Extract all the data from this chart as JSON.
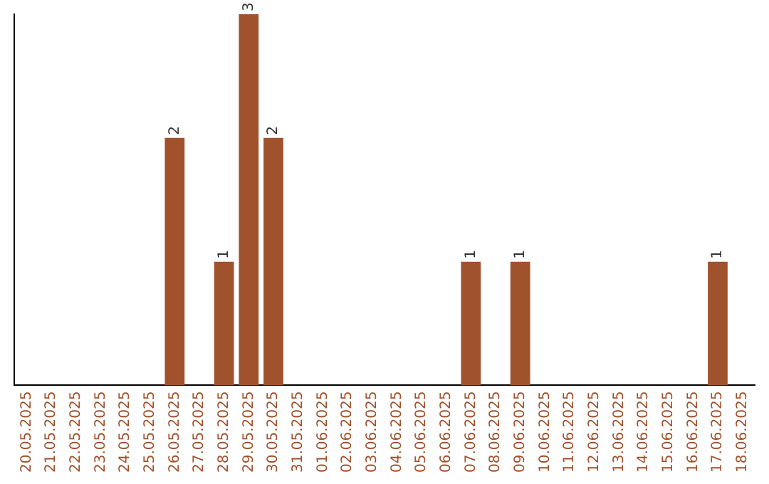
{
  "chart_data": {
    "type": "bar",
    "categories": [
      "20.05.2025",
      "21.05.2025",
      "22.05.2025",
      "23.05.2025",
      "24.05.2025",
      "25.05.2025",
      "26.05.2025",
      "27.05.2025",
      "28.05.2025",
      "29.05.2025",
      "30.05.2025",
      "31.05.2025",
      "01.06.2025",
      "02.06.2025",
      "03.06.2025",
      "04.06.2025",
      "05.06.2025",
      "06.06.2025",
      "07.06.2025",
      "08.06.2025",
      "09.06.2025",
      "10.06.2025",
      "11.06.2025",
      "12.06.2025",
      "13.06.2025",
      "14.06.2025",
      "15.06.2025",
      "16.06.2025",
      "17.06.2025",
      "18.06.2025"
    ],
    "values": [
      0,
      0,
      0,
      0,
      0,
      0,
      2,
      0,
      1,
      3,
      2,
      0,
      0,
      0,
      0,
      0,
      0,
      0,
      1,
      0,
      1,
      0,
      0,
      0,
      0,
      0,
      0,
      0,
      1,
      0
    ],
    "value_labels": [
      null,
      null,
      null,
      null,
      null,
      null,
      "2",
      null,
      "1",
      "3",
      "2",
      null,
      null,
      null,
      null,
      null,
      null,
      null,
      "1",
      null,
      "1",
      null,
      null,
      null,
      null,
      null,
      null,
      null,
      "1",
      null
    ],
    "color": "#a0522d",
    "grid": false,
    "legend": false,
    "tick_labels": "x"
  }
}
